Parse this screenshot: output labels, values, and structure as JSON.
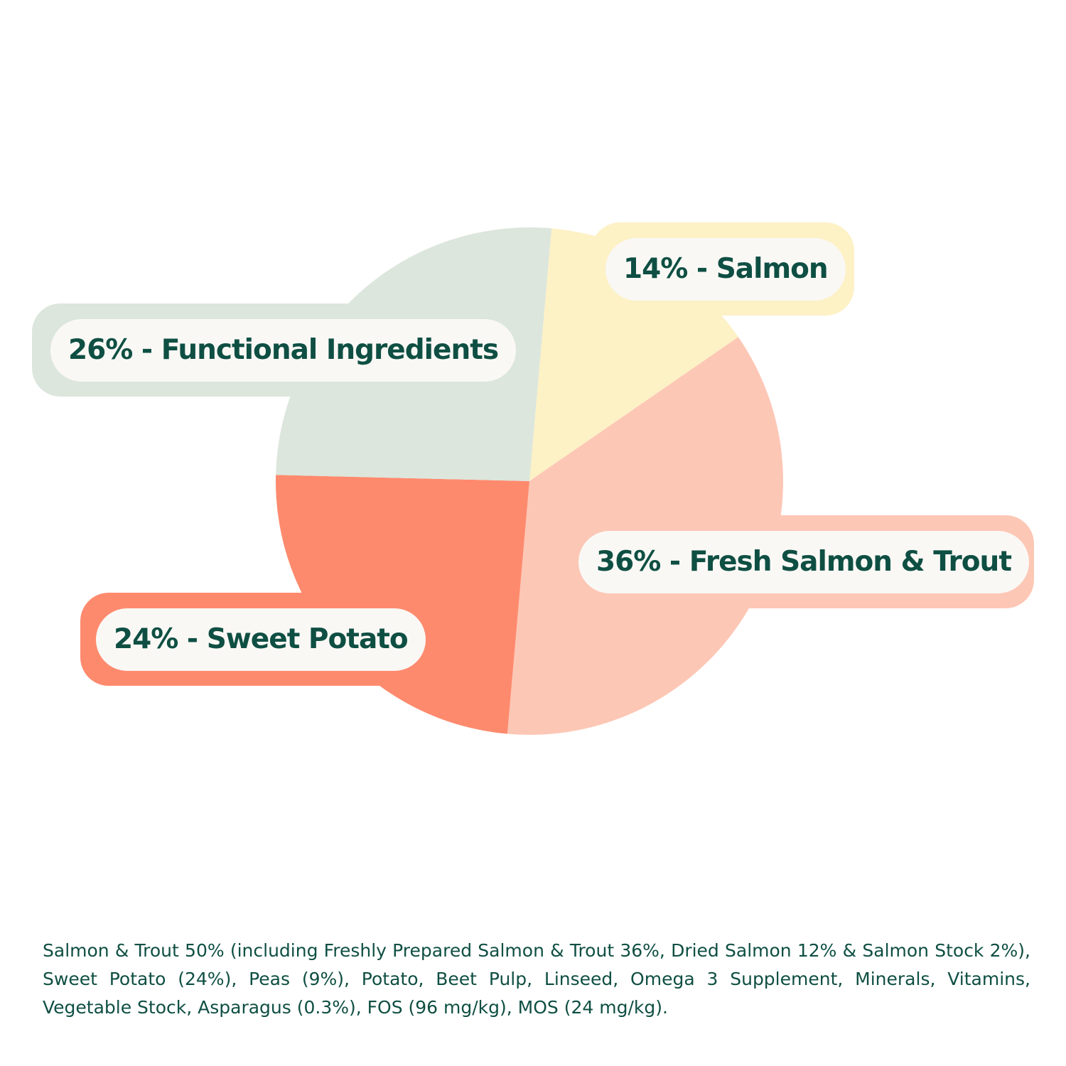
{
  "chart_data": {
    "type": "pie",
    "start_angle_deg": 5,
    "direction": "clockwise",
    "slices": [
      {
        "key": "salmon",
        "label": "14% - Salmon",
        "value": 14,
        "color": "#fdf1c6"
      },
      {
        "key": "fresh",
        "label": "36% - Fresh Salmon & Trout",
        "value": 36,
        "color": "#fdc7b5"
      },
      {
        "key": "sweet",
        "label": "24% - Sweet Potato",
        "value": 24,
        "color": "#fe8a6e"
      },
      {
        "key": "functional",
        "label": "26% - Functional Ingredients",
        "value": 26,
        "color": "#dce6dc"
      }
    ]
  },
  "ingredients": "Salmon & Trout 50% (including Freshly Prepared Salmon & Trout 36%, Dried Salmon 12% & Salmon Stock 2%), Sweet Potato (24%), Peas (9%), Potato, Beet Pulp, Linseed, Omega 3 Supplement, Minerals, Vitamins, Vegetable Stock, Asparagus (0.3%), FOS (96 mg/kg), MOS (24 mg/kg).",
  "colors": {
    "text": "#0f4f43",
    "label_background": "#faf8f5",
    "page_background": "#ffffff"
  }
}
